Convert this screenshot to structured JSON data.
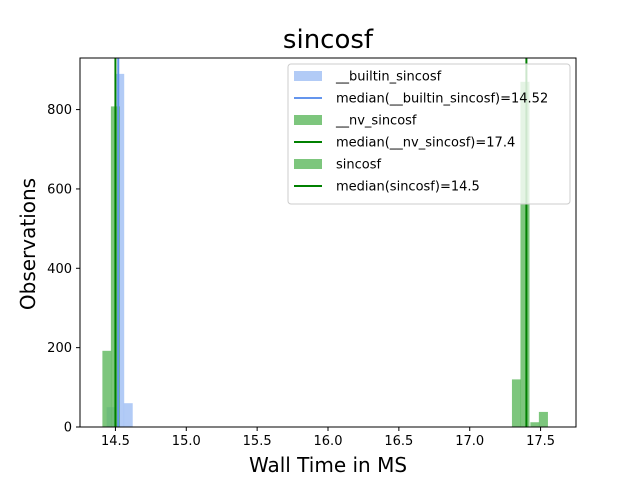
{
  "chart_data": {
    "type": "bar",
    "title": "sincosf",
    "xlabel": "Wall Time in MS",
    "ylabel": "Observations",
    "xlim": [
      14.25,
      17.75
    ],
    "ylim": [
      0,
      930
    ],
    "xticks": [
      "14.5",
      "15.0",
      "15.5",
      "16.0",
      "16.5",
      "17.0",
      "17.5"
    ],
    "yticks": [
      "0",
      "200",
      "400",
      "600",
      "800"
    ],
    "legend_position": "top-right",
    "bin_width": 0.064,
    "series": [
      {
        "name": "__builtin_sincosf",
        "color": "#a4c2f4",
        "opacity": 0.85,
        "bins": [
          {
            "x": 14.47,
            "count": 50
          },
          {
            "x": 14.53,
            "count": 890
          },
          {
            "x": 14.59,
            "count": 60
          }
        ],
        "median": {
          "label": "median(__builtin_sincosf)=14.52",
          "value": 14.52,
          "color": "#6495ed"
        }
      },
      {
        "name": "__nv_sincosf",
        "color": "#5cb85c",
        "opacity": 0.8,
        "bins": [
          {
            "x": 17.33,
            "count": 120
          },
          {
            "x": 17.39,
            "count": 870
          },
          {
            "x": 17.46,
            "count": 12
          },
          {
            "x": 17.52,
            "count": 38
          }
        ],
        "median": {
          "label": "median(__nv_sincosf)=17.4",
          "value": 17.4,
          "color": "#008000"
        }
      },
      {
        "name": "sincosf",
        "color": "#5cb85c",
        "opacity": 0.8,
        "bins": [
          {
            "x": 14.44,
            "count": 192
          },
          {
            "x": 14.5,
            "count": 808
          }
        ],
        "median": {
          "label": "median(sincosf)=14.5",
          "value": 14.5,
          "color": "#008000"
        }
      }
    ]
  }
}
